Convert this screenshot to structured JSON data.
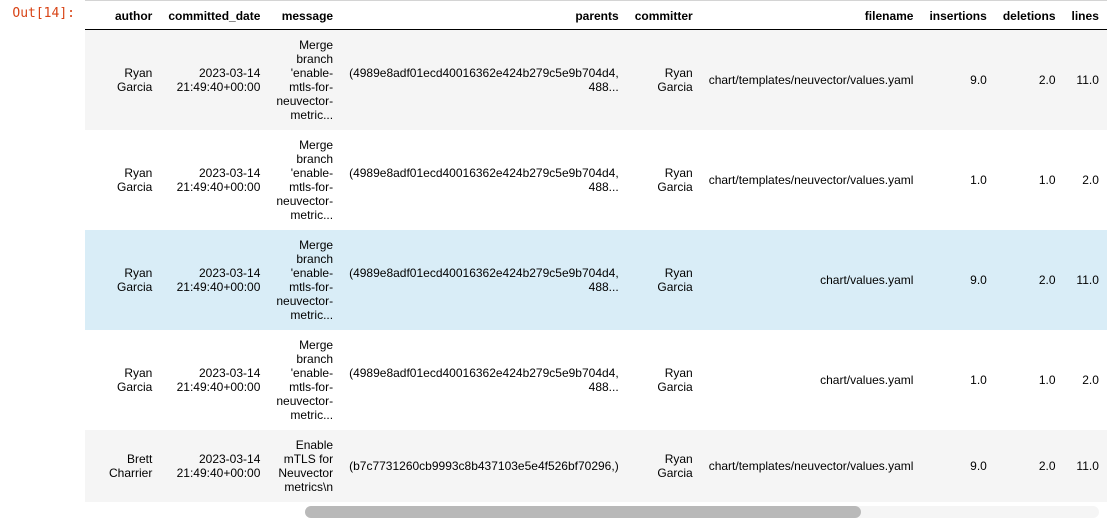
{
  "prompt": {
    "text": "Out[14]:",
    "color": "#d84315"
  },
  "table": {
    "columns": [
      "",
      "author",
      "committed_date",
      "message",
      "parents",
      "committer",
      "filename",
      "insertions",
      "deletions",
      "lines"
    ],
    "row_bg_default": "#ffffff",
    "row_bg_alt": "#f5f5f5",
    "row_bg_selected": "#d9edf7",
    "rows": [
      {
        "bg": "alt",
        "author": "Ryan Garcia",
        "committed_date": "2023-03-14 21:49:40+00:00",
        "message": "Merge branch 'enable-mtls-for-neuvector-metric...",
        "parents": "(4989e8adf01ecd40016362e424b279c5e9b704d4, 488...",
        "committer": "Ryan Garcia",
        "filename": "chart/templates/neuvector/values.yaml",
        "insertions": "9.0",
        "deletions": "2.0",
        "lines": "11.0"
      },
      {
        "bg": "default",
        "author": "Ryan Garcia",
        "committed_date": "2023-03-14 21:49:40+00:00",
        "message": "Merge branch 'enable-mtls-for-neuvector-metric...",
        "parents": "(4989e8adf01ecd40016362e424b279c5e9b704d4, 488...",
        "committer": "Ryan Garcia",
        "filename": "chart/templates/neuvector/values.yaml",
        "insertions": "1.0",
        "deletions": "1.0",
        "lines": "2.0"
      },
      {
        "bg": "selected",
        "author": "Ryan Garcia",
        "committed_date": "2023-03-14 21:49:40+00:00",
        "message": "Merge branch 'enable-mtls-for-neuvector-metric...",
        "parents": "(4989e8adf01ecd40016362e424b279c5e9b704d4, 488...",
        "committer": "Ryan Garcia",
        "filename": "chart/values.yaml",
        "insertions": "9.0",
        "deletions": "2.0",
        "lines": "11.0"
      },
      {
        "bg": "default",
        "author": "Ryan Garcia",
        "committed_date": "2023-03-14 21:49:40+00:00",
        "message": "Merge branch 'enable-mtls-for-neuvector-metric...",
        "parents": "(4989e8adf01ecd40016362e424b279c5e9b704d4, 488...",
        "committer": "Ryan Garcia",
        "filename": "chart/values.yaml",
        "insertions": "1.0",
        "deletions": "1.0",
        "lines": "2.0"
      },
      {
        "bg": "alt",
        "author": "Brett Charrier",
        "committed_date": "2023-03-14 21:49:40+00:00",
        "message": "Enable mTLS for Neuvector metrics\\n",
        "parents": "(b7c7731260cb9993c8b437103e5e4f526bf70296,)",
        "committer": "Ryan Garcia",
        "filename": "chart/templates/neuvector/values.yaml",
        "insertions": "9.0",
        "deletions": "2.0",
        "lines": "11.0"
      }
    ]
  },
  "scrollbar": {
    "track_color": "#f5f5f5",
    "thumb_color": "#b9b9b9",
    "thumb_width_pct": 70
  }
}
